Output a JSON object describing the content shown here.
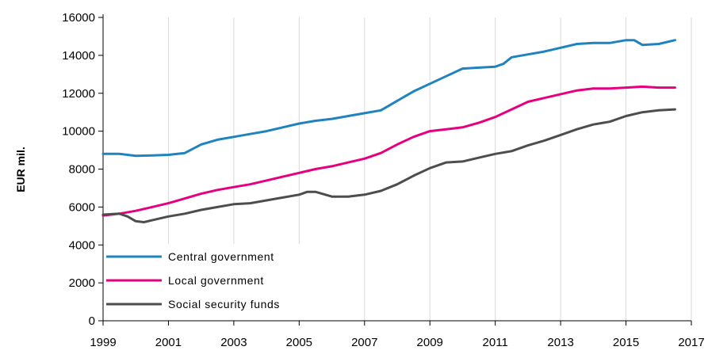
{
  "chart_data": {
    "type": "line",
    "title": "",
    "xlabel": "",
    "ylabel": "EUR mil.",
    "xlim": [
      1999,
      2017
    ],
    "ylim": [
      0,
      16000
    ],
    "x_ticks": [
      "1999",
      "2001",
      "2003",
      "2005",
      "2007",
      "2009",
      "2011",
      "2013",
      "2015",
      "2017"
    ],
    "y_ticks": [
      "0",
      "2000",
      "4000",
      "6000",
      "8000",
      "10000",
      "12000",
      "14000",
      "16000"
    ],
    "grid": "vertical",
    "legend_position": "bottom-left",
    "series": [
      {
        "name": "Central government",
        "color": "#1f83c0",
        "x": [
          1999,
          1999.5,
          2000,
          2000.5,
          2001,
          2001.5,
          2002,
          2002.5,
          2003,
          2003.5,
          2004,
          2004.5,
          2005,
          2005.5,
          2006,
          2006.5,
          2007,
          2007.5,
          2008,
          2008.5,
          2009,
          2009.5,
          2010,
          2010.5,
          2011,
          2011.25,
          2011.5,
          2012,
          2012.5,
          2013,
          2013.5,
          2014,
          2014.5,
          2015,
          2015.25,
          2015.5,
          2016,
          2016.5
        ],
        "values": [
          8800,
          8800,
          8700,
          8720,
          8750,
          8850,
          9300,
          9550,
          9700,
          9850,
          10000,
          10200,
          10400,
          10550,
          10650,
          10800,
          10950,
          11100,
          11600,
          12100,
          12500,
          12900,
          13300,
          13350,
          13400,
          13550,
          13900,
          14050,
          14200,
          14400,
          14600,
          14650,
          14650,
          14800,
          14800,
          14550,
          14600,
          14800
        ]
      },
      {
        "name": "Local government",
        "color": "#e6007e",
        "x": [
          1999,
          1999.5,
          2000,
          2000.5,
          2001,
          2001.5,
          2002,
          2002.5,
          2003,
          2003.5,
          2004,
          2004.5,
          2005,
          2005.5,
          2006,
          2006.5,
          2007,
          2007.5,
          2008,
          2008.5,
          2009,
          2009.5,
          2010,
          2010.5,
          2011,
          2011.5,
          2012,
          2012.5,
          2013,
          2013.5,
          2014,
          2014.5,
          2015,
          2015.5,
          2016,
          2016.5
        ],
        "values": [
          5550,
          5650,
          5800,
          6000,
          6200,
          6450,
          6700,
          6900,
          7050,
          7200,
          7400,
          7600,
          7800,
          8000,
          8150,
          8350,
          8550,
          8850,
          9300,
          9700,
          10000,
          10100,
          10200,
          10450,
          10750,
          11150,
          11550,
          11750,
          11950,
          12150,
          12250,
          12250,
          12300,
          12350,
          12300,
          12300
        ]
      },
      {
        "name": "Social security funds",
        "color": "#4d4d4d",
        "x": [
          1999,
          1999.5,
          1999.75,
          2000,
          2000.25,
          2000.5,
          2001,
          2001.5,
          2002,
          2002.5,
          2003,
          2003.5,
          2004,
          2004.5,
          2005,
          2005.25,
          2005.5,
          2006,
          2006.5,
          2007,
          2007.5,
          2008,
          2008.5,
          2009,
          2009.5,
          2010,
          2010.5,
          2011,
          2011.5,
          2012,
          2012.5,
          2013,
          2013.5,
          2014,
          2014.5,
          2015,
          2015.5,
          2016,
          2016.5
        ],
        "values": [
          5600,
          5650,
          5500,
          5250,
          5200,
          5300,
          5500,
          5650,
          5850,
          6000,
          6150,
          6200,
          6350,
          6500,
          6650,
          6800,
          6800,
          6550,
          6550,
          6650,
          6850,
          7200,
          7650,
          8050,
          8350,
          8400,
          8600,
          8800,
          8950,
          9250,
          9500,
          9800,
          10100,
          10350,
          10500,
          10800,
          11000,
          11100,
          11150
        ]
      }
    ]
  }
}
